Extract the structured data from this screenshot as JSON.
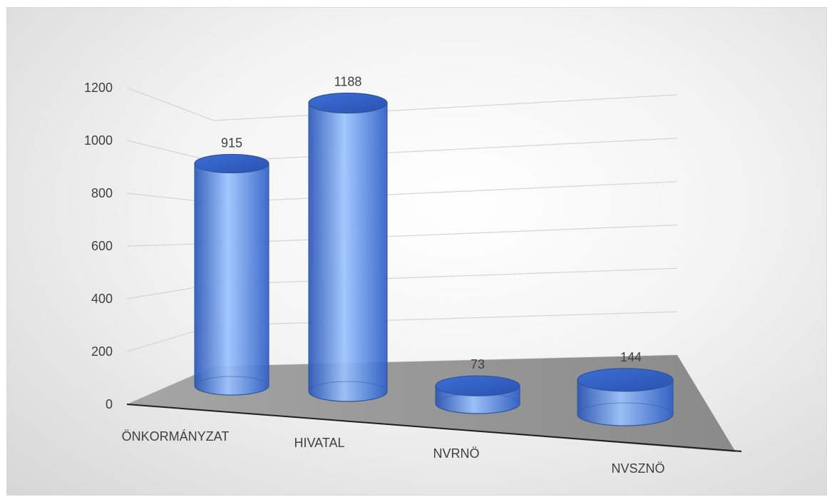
{
  "chart_data": {
    "type": "bar",
    "bar_shape": "cylinder-3d",
    "categories": [
      "ÖNKORMÁNYZAT",
      "HIVATAL",
      "NVRNÖ",
      "NVSZNÖ"
    ],
    "values": [
      915,
      1188,
      73,
      144
    ],
    "ylim": [
      0,
      1200
    ],
    "yticks": [
      "0",
      "200",
      "400",
      "600",
      "800",
      "1000",
      "1200"
    ],
    "data_labels": [
      "915",
      "1188",
      "73",
      "144"
    ],
    "grid": true,
    "legend": "none",
    "bar_color": "#4f81d6",
    "bar_edge_color": "#2f5597"
  }
}
